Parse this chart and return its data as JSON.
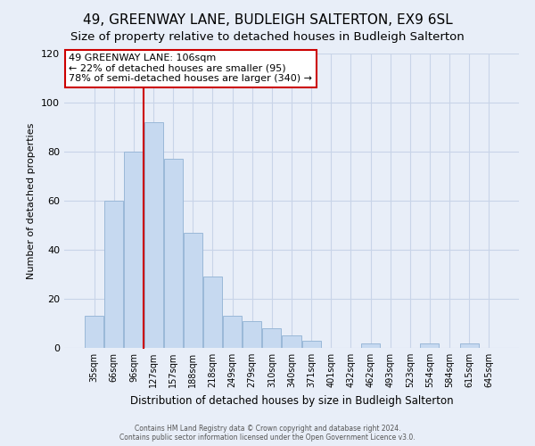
{
  "title": "49, GREENWAY LANE, BUDLEIGH SALTERTON, EX9 6SL",
  "subtitle": "Size of property relative to detached houses in Budleigh Salterton",
  "xlabel": "Distribution of detached houses by size in Budleigh Salterton",
  "ylabel": "Number of detached properties",
  "bar_labels": [
    "35sqm",
    "66sqm",
    "96sqm",
    "127sqm",
    "157sqm",
    "188sqm",
    "218sqm",
    "249sqm",
    "279sqm",
    "310sqm",
    "340sqm",
    "371sqm",
    "401sqm",
    "432sqm",
    "462sqm",
    "493sqm",
    "523sqm",
    "554sqm",
    "584sqm",
    "615sqm",
    "645sqm"
  ],
  "bar_heights": [
    13,
    60,
    80,
    92,
    77,
    47,
    29,
    13,
    11,
    8,
    5,
    3,
    0,
    0,
    2,
    0,
    0,
    2,
    0,
    2,
    0
  ],
  "bar_color": "#c6d9f0",
  "bar_edge_color": "#9ab8d8",
  "ylim": [
    0,
    120
  ],
  "yticks": [
    0,
    20,
    40,
    60,
    80,
    100,
    120
  ],
  "property_line_label": "49 GREENWAY LANE: 106sqm",
  "annot_line1": "← 22% of detached houses are smaller (95)",
  "annot_line2": "78% of semi-detached houses are larger (340) →",
  "footer_line1": "Contains HM Land Registry data © Crown copyright and database right 2024.",
  "footer_line2": "Contains public sector information licensed under the Open Government Licence v3.0.",
  "background_color": "#e8eef8",
  "grid_color": "#c8d4e8",
  "title_fontsize": 11,
  "subtitle_fontsize": 9.5
}
